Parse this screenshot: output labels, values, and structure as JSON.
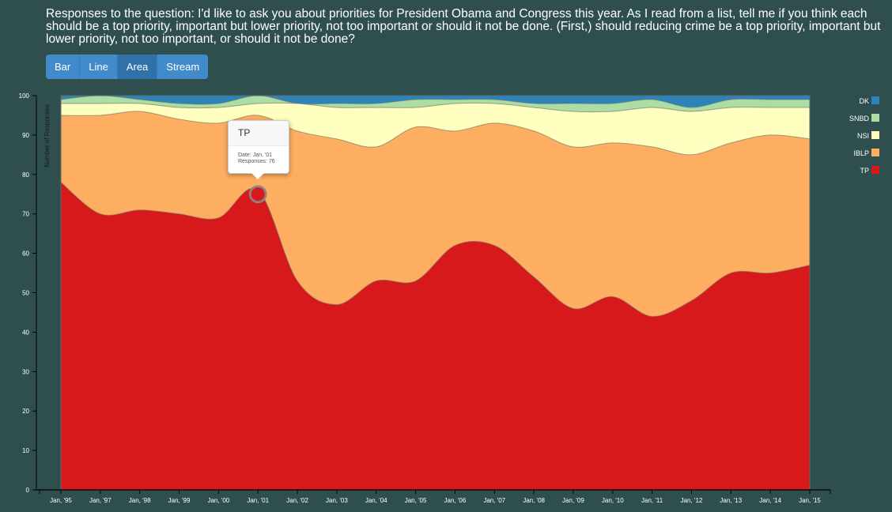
{
  "question": "Responses to the question: I'd like to ask you about priorities for President Obama and Congress this year. As I read from a list, tell me if you think each should be a top priority, important but lower priority, not too important or should it not be done. (First,) should reducing crime be a top priority, important but lower priority, not too important, or should it not be done?",
  "toolbar": {
    "buttons": [
      {
        "label": "Bar",
        "active": false
      },
      {
        "label": "Line",
        "active": false
      },
      {
        "label": "Area",
        "active": true
      },
      {
        "label": "Stream",
        "active": false
      }
    ]
  },
  "tooltip": {
    "title": "TP",
    "date_line": "Date: Jan, '01",
    "responses_line": "Responses: 76"
  },
  "chart_data": {
    "type": "area",
    "stacked": true,
    "ylabel": "Number of Responses",
    "xlabel": "",
    "ylim": [
      0,
      100
    ],
    "yticks": [
      0,
      10,
      20,
      30,
      40,
      50,
      60,
      70,
      80,
      90,
      100
    ],
    "x": [
      "Jan, '95",
      "Jan, '97",
      "Jan, '98",
      "Jan, '99",
      "Jan, '00",
      "Jan, '01",
      "Jan, '02",
      "Jan, '03",
      "Jan, '04",
      "Jan, '05",
      "Jan, '06",
      "Jan, '07",
      "Jan, '08",
      "Jan, '09",
      "Jan, '10",
      "Jan, '11",
      "Jan, '12",
      "Jan, '13",
      "Jan, '14",
      "Jan, '15"
    ],
    "legend_position": "right",
    "series": [
      {
        "name": "TP",
        "color": "#d7191c",
        "values": [
          78,
          70,
          71,
          70,
          69,
          76,
          53,
          47,
          53,
          53,
          62,
          62,
          54,
          46,
          49,
          44,
          48,
          55,
          55,
          57
        ]
      },
      {
        "name": "IBLP",
        "color": "#fdae61",
        "values": [
          17,
          25,
          25,
          24,
          24,
          19,
          38,
          42,
          34,
          39,
          29,
          31,
          37,
          41,
          39,
          43,
          37,
          33,
          35,
          32
        ]
      },
      {
        "name": "NSI",
        "color": "#ffffbf",
        "values": [
          3,
          3,
          2,
          3,
          4,
          3,
          7,
          8,
          10,
          5,
          7,
          5,
          6,
          9,
          8,
          10,
          11,
          9,
          7,
          8
        ]
      },
      {
        "name": "SNBD",
        "color": "#abdda4",
        "values": [
          1,
          2,
          1,
          1,
          1,
          2,
          0,
          1,
          1,
          2,
          1,
          1,
          1,
          2,
          2,
          2,
          1,
          2,
          2,
          2
        ]
      },
      {
        "name": "DK",
        "color": "#2b83ba",
        "values": [
          1,
          0,
          1,
          2,
          2,
          0,
          2,
          2,
          2,
          1,
          1,
          1,
          2,
          2,
          2,
          1,
          3,
          1,
          1,
          1
        ]
      }
    ]
  }
}
